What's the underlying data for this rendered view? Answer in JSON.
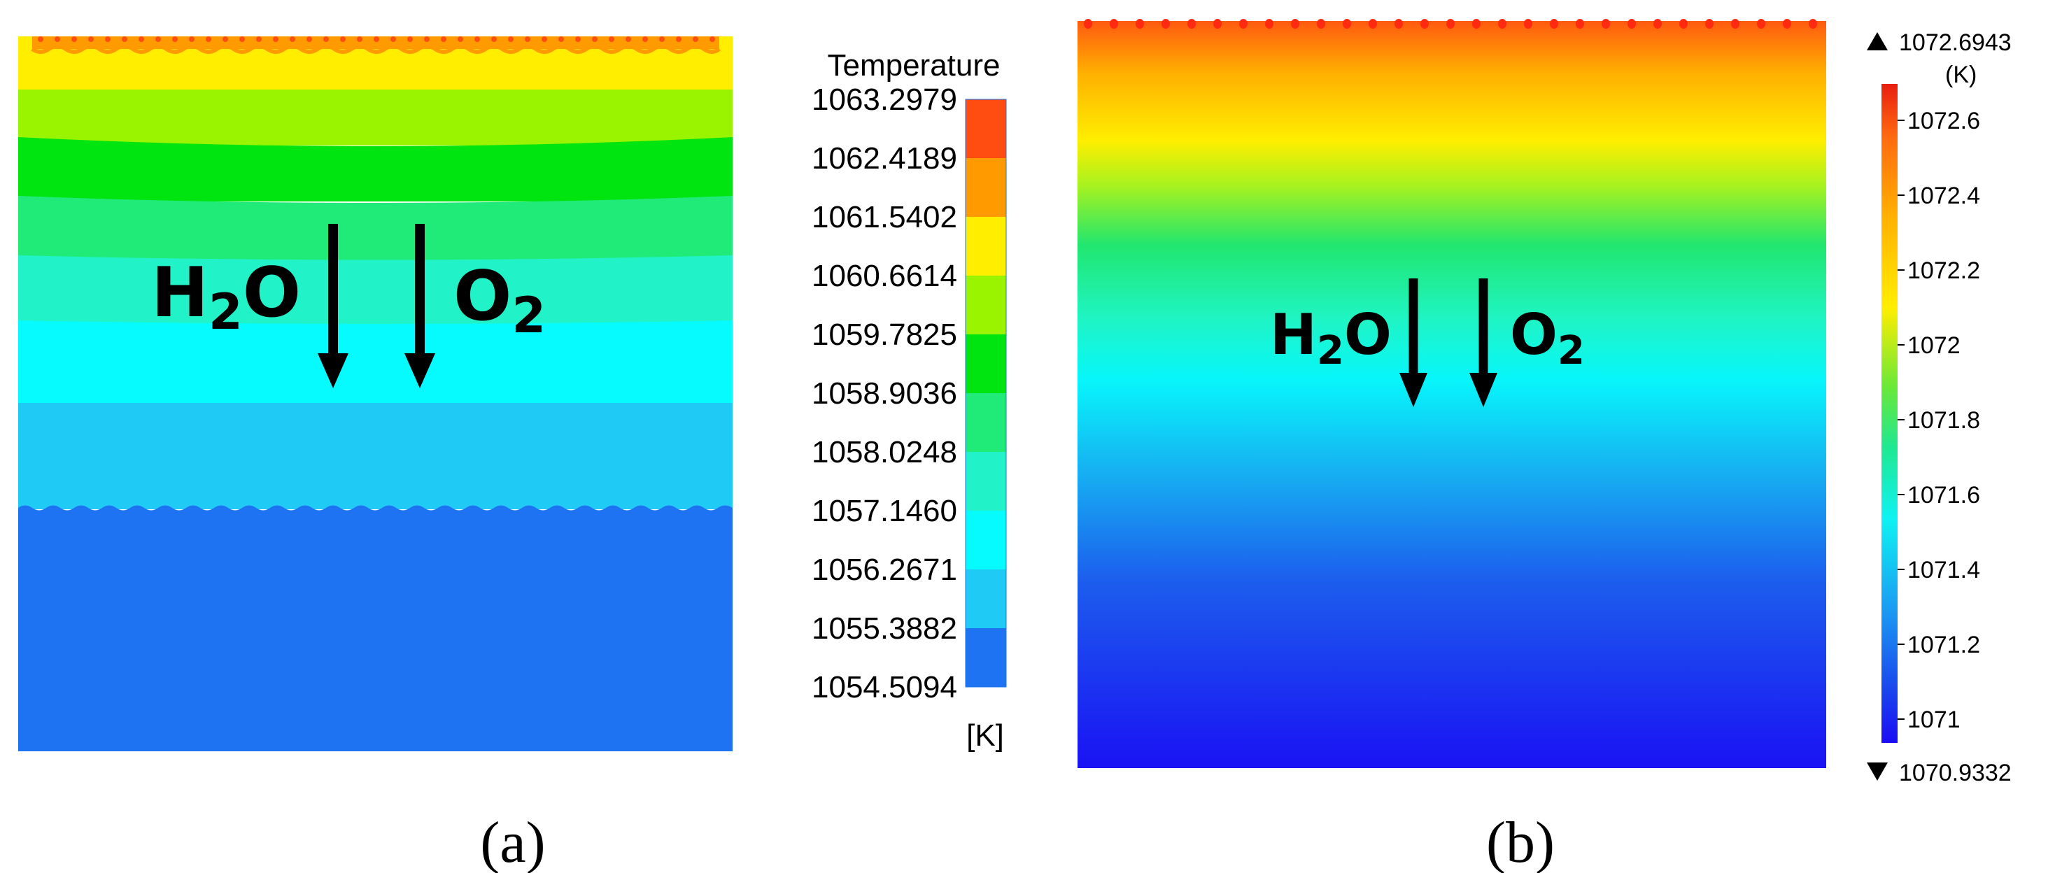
{
  "panel_a": {
    "colorbar_title": "Temperature",
    "colorbar_unit": "[K]",
    "ticks": [
      "1063.2979",
      "1062.4189",
      "1061.5402",
      "1060.6614",
      "1059.7825",
      "1058.9036",
      "1058.0248",
      "1057.1460",
      "1056.2671",
      "1055.3882",
      "1054.5094"
    ],
    "legend_colors": [
      "#ff4c10",
      "#ff9a00",
      "#ffee00",
      "#9af400",
      "#00e410",
      "#20eb78",
      "#22f2c8",
      "#05fbfd",
      "#1fcaf4",
      "#1e73f2"
    ],
    "contour_bands": [
      "#ffee00",
      "#9af400",
      "#00e410",
      "#20eb78",
      "#22f2c8",
      "#05fbfd",
      "#1fcaf4",
      "#1e73f2"
    ],
    "caption": "(a)",
    "labels": {
      "left_main": "H",
      "left_sub": "2",
      "left_tail": "O",
      "right_main": "O",
      "right_sub": "2"
    }
  },
  "panel_b": {
    "max_label": "1072.6943",
    "unit": "(K)",
    "ticks": [
      "1072.6",
      "1072.4",
      "1072.2",
      "1072",
      "1071.8",
      "1071.6",
      "1071.4",
      "1071.2",
      "1071"
    ],
    "min_label": "1070.9332",
    "caption": "(b)",
    "labels": {
      "left_main": "H",
      "left_sub": "2",
      "left_tail": "O",
      "right_main": "O",
      "right_sub": "2"
    }
  }
}
